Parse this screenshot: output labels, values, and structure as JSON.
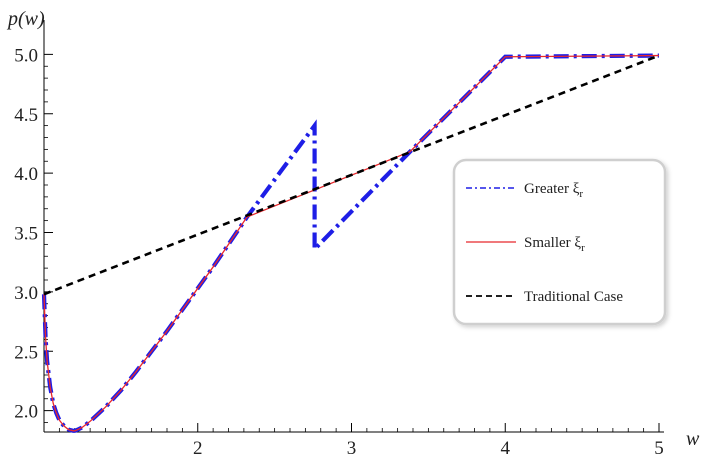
{
  "chart_data": {
    "type": "line",
    "title": "",
    "xlabel": "w",
    "ylabel": "p(w)",
    "xlim": [
      1.0,
      5.0
    ],
    "ylim": [
      1.82,
      5.02
    ],
    "grid": false,
    "legend_position": "right",
    "x_ticks": [
      2,
      3,
      4,
      5
    ],
    "y_ticks": [
      2.0,
      2.5,
      3.0,
      3.5,
      4.0,
      4.5,
      5.0
    ],
    "x_tick_labels": [
      "2",
      "3",
      "4",
      "5"
    ],
    "y_tick_labels": [
      "2.0",
      "2.5",
      "3.0",
      "3.5",
      "4.0",
      "4.5",
      "5.0"
    ],
    "series": [
      {
        "name": "Greater ξr",
        "legend_label": "Greater ξ",
        "legend_sub": "r",
        "color": "#1e1ee6",
        "style": "dash-dot-thick",
        "x": [
          1.0,
          1.01,
          1.02,
          1.04,
          1.06,
          1.08,
          1.1,
          1.13,
          1.16,
          1.19,
          1.2,
          1.22,
          1.25,
          1.3,
          1.4,
          1.5,
          1.6,
          1.7,
          1.8,
          1.9,
          2.0,
          2.1,
          2.2,
          2.32,
          2.76,
          2.76,
          3.38,
          4.0,
          5.0
        ],
        "y": [
          2.98,
          2.62,
          2.42,
          2.2,
          2.06,
          1.98,
          1.92,
          1.87,
          1.84,
          1.83,
          1.83,
          1.84,
          1.86,
          1.91,
          2.03,
          2.17,
          2.33,
          2.5,
          2.67,
          2.85,
          3.03,
          3.21,
          3.4,
          3.63,
          4.4,
          3.36,
          4.18,
          4.98,
          4.99
        ]
      },
      {
        "name": "Smaller ξr",
        "legend_label": "Smaller ξ",
        "legend_sub": "r",
        "color": "#e8282c",
        "style": "solid-thin",
        "x": [
          1.0,
          1.01,
          1.02,
          1.04,
          1.06,
          1.08,
          1.1,
          1.13,
          1.16,
          1.19,
          1.2,
          1.22,
          1.25,
          1.3,
          1.4,
          1.5,
          1.6,
          1.7,
          1.8,
          1.9,
          2.0,
          2.1,
          2.2,
          2.32,
          3.38,
          4.0,
          5.0
        ],
        "y": [
          2.98,
          2.62,
          2.42,
          2.2,
          2.06,
          1.98,
          1.92,
          1.87,
          1.84,
          1.83,
          1.83,
          1.84,
          1.86,
          1.91,
          2.03,
          2.17,
          2.33,
          2.5,
          2.67,
          2.85,
          3.03,
          3.21,
          3.4,
          3.63,
          4.18,
          4.98,
          4.99
        ]
      },
      {
        "name": "Traditional Case",
        "legend_label": "Traditional Case",
        "legend_sub": "",
        "color": "#000000",
        "style": "dashed",
        "x": [
          1.0,
          5.0
        ],
        "y": [
          2.98,
          4.99
        ]
      }
    ]
  }
}
